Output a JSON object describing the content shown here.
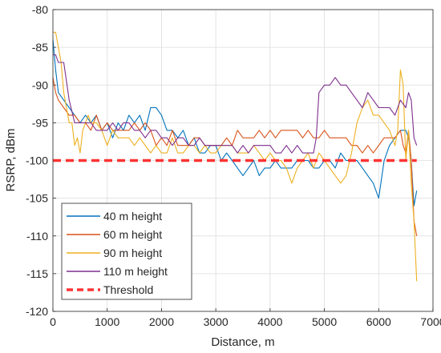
{
  "chart_data": {
    "type": "line",
    "title": "",
    "xlabel": "Distance, m",
    "ylabel": "RSRP, dBm",
    "xlim": [
      0,
      7000
    ],
    "ylim": [
      -120,
      -80
    ],
    "xticks": [
      "0",
      "1000",
      "2000",
      "3000",
      "4000",
      "5000",
      "6000",
      "7000"
    ],
    "yticks": [
      "-80",
      "-85",
      "-90",
      "-95",
      "-100",
      "-105",
      "-110",
      "-115",
      "-120"
    ],
    "grid": true,
    "legend_position": "bottom-left",
    "series": [
      {
        "name": "40 m height",
        "color": "#0072BD",
        "x": [
          0,
          50,
          100,
          200,
          300,
          400,
          500,
          600,
          700,
          800,
          900,
          1000,
          1100,
          1200,
          1300,
          1400,
          1500,
          1600,
          1700,
          1800,
          1900,
          2000,
          2100,
          2200,
          2300,
          2400,
          2500,
          2600,
          2700,
          2800,
          2900,
          3000,
          3100,
          3200,
          3300,
          3400,
          3500,
          3600,
          3700,
          3800,
          3900,
          4000,
          4100,
          4200,
          4300,
          4400,
          4500,
          4600,
          4700,
          4800,
          4900,
          5000,
          5100,
          5200,
          5300,
          5400,
          5500,
          5600,
          5700,
          5800,
          5900,
          6000,
          6100,
          6200,
          6300,
          6400,
          6500,
          6550,
          6600,
          6650,
          6700
        ],
        "y": [
          -84,
          -88,
          -91,
          -92,
          -93,
          -94,
          -95,
          -94,
          -95,
          -94,
          -96,
          -95,
          -97,
          -95,
          -96,
          -94,
          -95,
          -94,
          -96,
          -93,
          -93,
          -94,
          -96,
          -96,
          -97,
          -96,
          -98,
          -97,
          -99,
          -99,
          -98,
          -98,
          -100,
          -99,
          -100,
          -101,
          -102,
          -101,
          -100,
          -102,
          -101,
          -101,
          -100,
          -101,
          -101,
          -101,
          -100,
          -100,
          -100,
          -101,
          -101,
          -100,
          -100,
          -101,
          -99,
          -100,
          -100,
          -100,
          -101,
          -102,
          -103,
          -105,
          -100,
          -98,
          -97,
          -96,
          -96,
          -97,
          -100,
          -106,
          -104
        ]
      },
      {
        "name": "60 m height",
        "color": "#D95319",
        "x": [
          0,
          50,
          100,
          200,
          300,
          400,
          500,
          600,
          700,
          800,
          900,
          1000,
          1100,
          1200,
          1300,
          1400,
          1500,
          1600,
          1700,
          1800,
          1900,
          2000,
          2100,
          2200,
          2300,
          2400,
          2500,
          2600,
          2700,
          2800,
          2900,
          3000,
          3100,
          3200,
          3300,
          3400,
          3500,
          3600,
          3700,
          3800,
          3900,
          4000,
          4100,
          4200,
          4300,
          4400,
          4500,
          4600,
          4700,
          4800,
          4900,
          5000,
          5100,
          5200,
          5300,
          5400,
          5500,
          5600,
          5700,
          5800,
          5900,
          6000,
          6100,
          6200,
          6300,
          6400,
          6450,
          6500,
          6550,
          6600,
          6650,
          6700
        ],
        "y": [
          -89,
          -91,
          -92,
          -93,
          -94,
          -94,
          -95,
          -95,
          -96,
          -94,
          -96,
          -95,
          -96,
          -96,
          -96,
          -96,
          -95,
          -96,
          -95,
          -96,
          -98,
          -97,
          -98,
          -96,
          -98,
          -98,
          -98,
          -97,
          -97,
          -98,
          -98,
          -98,
          -98,
          -97,
          -98,
          -96,
          -97,
          -97,
          -97,
          -96,
          -97,
          -96,
          -97,
          -96,
          -96,
          -96,
          -96,
          -97,
          -96,
          -97,
          -97,
          -96,
          -97,
          -97,
          -97,
          -97,
          -98,
          -98,
          -99,
          -98,
          -99,
          -98,
          -97,
          -97,
          -97,
          -96,
          -98,
          -99,
          -96,
          -100,
          -108,
          -110
        ]
      },
      {
        "name": "90 m height",
        "color": "#EDB120",
        "x": [
          0,
          50,
          100,
          150,
          200,
          250,
          300,
          350,
          400,
          450,
          500,
          550,
          600,
          650,
          700,
          800,
          900,
          1000,
          1100,
          1200,
          1300,
          1400,
          1500,
          1600,
          1700,
          1800,
          1900,
          2000,
          2100,
          2200,
          2300,
          2400,
          2500,
          2600,
          2700,
          2800,
          2900,
          3000,
          3100,
          3200,
          3300,
          3400,
          3500,
          3600,
          3700,
          3800,
          3900,
          4000,
          4100,
          4200,
          4300,
          4400,
          4500,
          4600,
          4700,
          4800,
          4900,
          5000,
          5100,
          5200,
          5300,
          5400,
          5500,
          5600,
          5700,
          5800,
          5900,
          6000,
          6100,
          6200,
          6300,
          6350,
          6400,
          6450,
          6500,
          6550,
          6600,
          6650,
          6700
        ],
        "y": [
          -83,
          -83,
          -85,
          -87,
          -91,
          -93,
          -95,
          -95,
          -98,
          -97,
          -99,
          -96,
          -95,
          -94,
          -95,
          -95,
          -96,
          -98,
          -96,
          -97,
          -97,
          -97,
          -98,
          -97,
          -98,
          -99,
          -98,
          -99,
          -99,
          -97,
          -99,
          -99,
          -98,
          -98,
          -99,
          -98,
          -99,
          -99,
          -98,
          -98,
          -98,
          -99,
          -99,
          -99,
          -98,
          -99,
          -100,
          -99,
          -100,
          -100,
          -101,
          -103,
          -101,
          -100,
          -99,
          -101,
          -99,
          -100,
          -101,
          -102,
          -103,
          -102,
          -99,
          -95,
          -93,
          -92,
          -94,
          -94,
          -95,
          -96,
          -98,
          -96,
          -88,
          -90,
          -100,
          -96,
          -103,
          -108,
          -116
        ]
      },
      {
        "name": "110 m height",
        "color": "#7E2F8E",
        "x": [
          0,
          50,
          100,
          200,
          300,
          400,
          500,
          600,
          700,
          800,
          900,
          1000,
          1100,
          1200,
          1300,
          1400,
          1500,
          1600,
          1700,
          1800,
          1900,
          2000,
          2100,
          2200,
          2300,
          2400,
          2500,
          2600,
          2700,
          2800,
          2900,
          3000,
          3100,
          3200,
          3300,
          3400,
          3500,
          3600,
          3700,
          3800,
          3900,
          4000,
          4100,
          4200,
          4300,
          4400,
          4500,
          4600,
          4700,
          4800,
          4850,
          4900,
          5000,
          5100,
          5200,
          5300,
          5400,
          5500,
          5600,
          5700,
          5800,
          5900,
          6000,
          6100,
          6200,
          6300,
          6400,
          6500,
          6550,
          6600,
          6650,
          6700
        ],
        "y": [
          -86,
          -86,
          -87,
          -87,
          -92,
          -95,
          -95,
          -95,
          -95,
          -96,
          -96,
          -96,
          -95,
          -96,
          -95,
          -95,
          -96,
          -96,
          -97,
          -96,
          -96,
          -97,
          -97,
          -98,
          -97,
          -97,
          -98,
          -98,
          -97,
          -98,
          -98,
          -98,
          -98,
          -98,
          -98,
          -99,
          -98,
          -99,
          -98,
          -98,
          -98,
          -98,
          -99,
          -99,
          -98,
          -99,
          -98,
          -99,
          -99,
          -99,
          -97,
          -91,
          -90,
          -90,
          -89,
          -90,
          -90,
          -91,
          -92,
          -93,
          -91,
          -92,
          -93,
          -93,
          -93,
          -94,
          -92,
          -93,
          -91,
          -92,
          -97,
          -98
        ]
      },
      {
        "name": "Threshold",
        "color": "#FF3333",
        "dashed": true,
        "x": [
          0,
          6700
        ],
        "y": [
          -100,
          -100
        ]
      }
    ]
  }
}
